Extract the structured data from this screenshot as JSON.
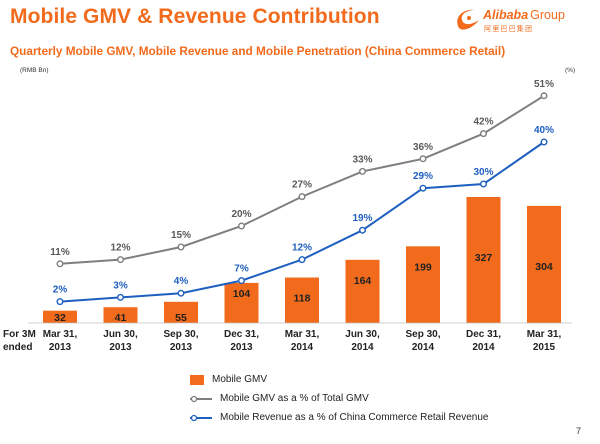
{
  "header": {
    "title": "Mobile GMV & Revenue Contribution",
    "subtitle": "Quarterly Mobile GMV, Mobile Revenue and Mobile Penetration (China Commerce Retail)",
    "unit_left": "(RMB Bn)",
    "unit_right": "(%)"
  },
  "logo": {
    "brand": "Alibaba",
    "group": "Group",
    "sub": "阿里巴巴集团"
  },
  "colors": {
    "accent": "#f26a1b",
    "bar": "#f26a1b",
    "gmv_line": "#7f7f7f",
    "rev_line": "#1f5fbf"
  },
  "page_number": "7",
  "chart_data": {
    "type": "bar",
    "title": "Quarterly Mobile GMV, Mobile Revenue and Mobile Penetration (China Commerce Retail)",
    "x_row_label": [
      "For 3M",
      "ended"
    ],
    "categories": [
      [
        "Mar 31,",
        "2013"
      ],
      [
        "Jun 30,",
        "2013"
      ],
      [
        "Sep 30,",
        "2013"
      ],
      [
        "Dec 31,",
        "2013"
      ],
      [
        "Mar 31,",
        "2014"
      ],
      [
        "Jun 30,",
        "2014"
      ],
      [
        "Sep 30,",
        "2014"
      ],
      [
        "Dec 31,",
        "2014"
      ],
      [
        "Mar 31,",
        "2015"
      ]
    ],
    "series": [
      {
        "name": "Mobile GMV",
        "type": "bar",
        "unit": "RMB Bn",
        "values": [
          32,
          41,
          55,
          104,
          118,
          164,
          199,
          327,
          304
        ],
        "labels": [
          "32",
          "41",
          "55",
          "104",
          "118",
          "164",
          "199",
          "327",
          "304"
        ]
      },
      {
        "name": "Mobile GMV as a % of Total GMV",
        "type": "line",
        "unit": "%",
        "values": [
          11,
          12,
          15,
          20,
          27,
          33,
          36,
          42,
          51
        ],
        "labels": [
          "11%",
          "12%",
          "15%",
          "20%",
          "27%",
          "33%",
          "36%",
          "42%",
          "51%"
        ]
      },
      {
        "name": "Mobile Revenue as a % of China Commerce Retail Revenue",
        "type": "line",
        "unit": "%",
        "values": [
          2,
          3,
          4,
          7,
          12,
          19,
          29,
          30,
          40
        ],
        "labels": [
          "2%",
          "3%",
          "4%",
          "7%",
          "12%",
          "19%",
          "29%",
          "30%",
          "40%"
        ]
      }
    ],
    "bar_ylim": [
      0,
      400
    ],
    "line_ylim": [
      0,
      60
    ],
    "legend_position": "bottom"
  }
}
